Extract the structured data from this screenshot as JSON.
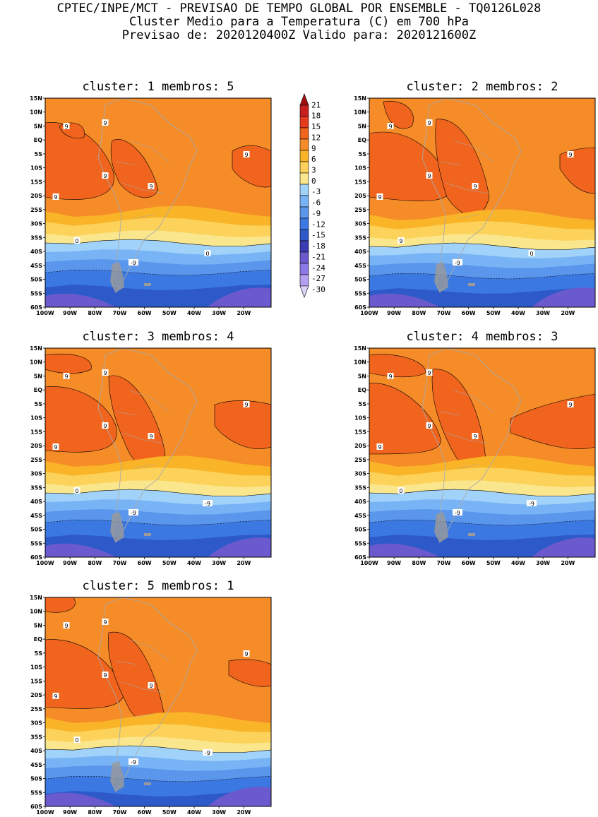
{
  "header": {
    "line1": "CPTEC/INPE/MCT - PREVISAO DE TEMPO GLOBAL POR ENSEMBLE - TQ0126L028",
    "line2": "Cluster Medio para a Temperatura (C) em 700 hPa",
    "line3": "Previsao de: 2020120400Z    Valido para: 2020121600Z"
  },
  "axes": {
    "lat_labels": [
      "15N",
      "10N",
      "5N",
      "EQ",
      "5S",
      "10S",
      "15S",
      "20S",
      "25S",
      "30S",
      "35S",
      "40S",
      "45S",
      "50S",
      "55S",
      "60S"
    ],
    "lon_labels": [
      "100W",
      "90W",
      "80W",
      "70W",
      "60W",
      "50W",
      "40W",
      "30W",
      "20W"
    ]
  },
  "colorbar": {
    "labels": [
      "21",
      "18",
      "15",
      "12",
      "9",
      "6",
      "3",
      "0",
      "-3",
      "-6",
      "-9",
      "-12",
      "-15",
      "-18",
      "-21",
      "-24",
      "-27",
      "-30"
    ],
    "colors": [
      "#a01010",
      "#c81e1e",
      "#e63c1e",
      "#f0641e",
      "#f58c28",
      "#fab428",
      "#fcd25a",
      "#fae68c",
      "#a0d2fa",
      "#78b4f5",
      "#5a96eb",
      "#3c78e1",
      "#2d5ac8",
      "#3c3cb4",
      "#6a5acd",
      "#8c78e6",
      "#b4a0f0",
      "#dcd2fa"
    ]
  },
  "panels": [
    {
      "title": "cluster: 1   membros: 5",
      "contour_labels": [
        "9",
        "9",
        "9",
        "9",
        "9",
        "9",
        "0",
        "0",
        "-9"
      ]
    },
    {
      "title": "cluster: 2   membros: 2",
      "contour_labels": [
        "9",
        "9",
        "9",
        "9",
        "9",
        "9",
        "9",
        "0",
        "-9"
      ]
    },
    {
      "title": "cluster: 3   membros: 4",
      "contour_labels": [
        "9",
        "9",
        "9",
        "9",
        "9",
        "9",
        "0",
        "-9",
        "-9"
      ]
    },
    {
      "title": "cluster: 4   membros: 3",
      "contour_labels": [
        "9",
        "9",
        "9",
        "9",
        "9",
        "9",
        "0",
        "-9",
        "-9"
      ]
    },
    {
      "title": "cluster: 5   membros: 1",
      "contour_labels": [
        "9",
        "9",
        "9",
        "9",
        "9",
        "9",
        "0",
        "-9",
        "-9"
      ]
    }
  ]
}
